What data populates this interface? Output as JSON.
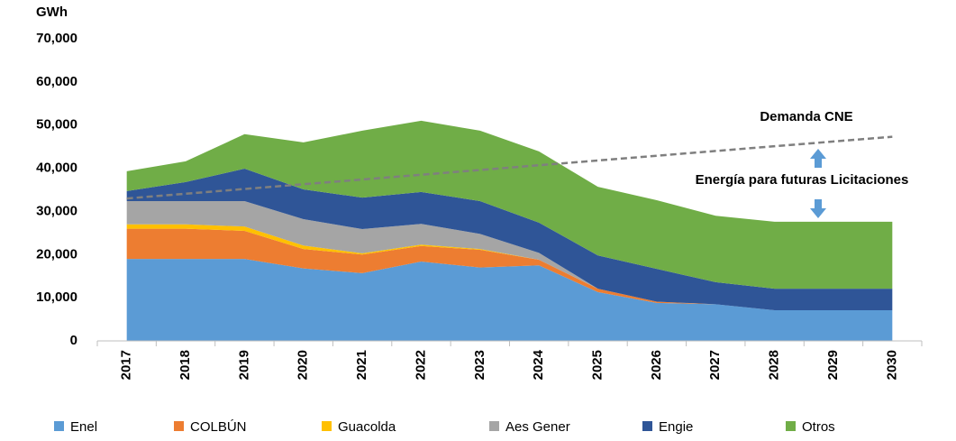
{
  "chart_data": {
    "type": "stacked_area",
    "y_unit": "GWh",
    "categories": [
      "2017",
      "2018",
      "2019",
      "2020",
      "2021",
      "2022",
      "2023",
      "2024",
      "2025",
      "2026",
      "2027",
      "2028",
      "2029",
      "2030"
    ],
    "series": [
      {
        "name": "Enel",
        "color": "#5b9bd5",
        "values": [
          19000,
          19000,
          19000,
          16800,
          15700,
          18400,
          17000,
          17500,
          11300,
          8800,
          8500,
          7100,
          7100,
          7100
        ]
      },
      {
        "name": "COLBÚN",
        "color": "#ed7d31",
        "values": [
          7000,
          7000,
          6500,
          4500,
          4300,
          3600,
          4100,
          1300,
          800,
          300,
          0,
          0,
          0,
          0
        ]
      },
      {
        "name": "Guacolda",
        "color": "#ffc000",
        "values": [
          1000,
          1000,
          1000,
          800,
          300,
          300,
          200,
          0,
          0,
          0,
          0,
          0,
          0,
          0
        ]
      },
      {
        "name": "Aes Gener",
        "color": "#a5a5a5",
        "values": [
          5400,
          5400,
          5900,
          6100,
          5600,
          4800,
          3500,
          1600,
          0,
          0,
          0,
          0,
          0,
          0
        ]
      },
      {
        "name": "Engie",
        "color": "#2f5597",
        "values": [
          2300,
          4400,
          7500,
          6900,
          7300,
          7400,
          7600,
          7000,
          7700,
          7600,
          5100,
          5000,
          5000,
          5000
        ]
      },
      {
        "name": "Otros",
        "color": "#70ad47",
        "values": [
          4600,
          4800,
          8000,
          10900,
          15500,
          16500,
          16300,
          16500,
          15900,
          15900,
          15400,
          15500,
          15500,
          15500
        ]
      }
    ],
    "demand": {
      "name": "Demanda CNE",
      "color": "#7f7f7f",
      "values": [
        33000,
        34100,
        35200,
        36300,
        37400,
        38500,
        39600,
        40700,
        41800,
        42900,
        44000,
        45100,
        46200,
        47300
      ]
    },
    "annotation": "Energía para futuras Licitaciones",
    "ylim": [
      0,
      70000
    ],
    "yticks": [
      0,
      {
        "value": 10000,
        "label": "10,000"
      },
      {
        "value": 20000,
        "label": "20,000"
      },
      {
        "value": 30000,
        "label": "30,000"
      },
      {
        "value": 40000,
        "label": "40,000"
      },
      {
        "value": 50000,
        "label": "50,000"
      },
      {
        "value": 60000,
        "label": "60,000"
      },
      {
        "value": 70000,
        "label": "70,000"
      }
    ],
    "grid": false,
    "legend": "bottom"
  }
}
